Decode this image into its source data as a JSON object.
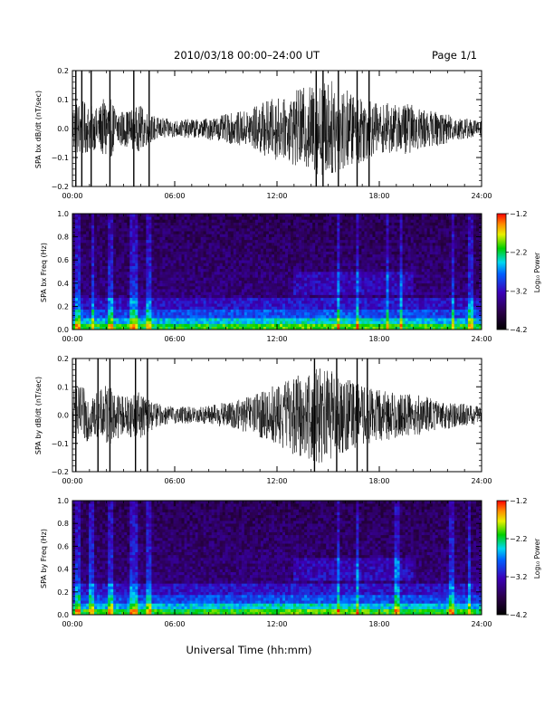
{
  "header": {
    "title": "2010/03/18   00:00–24:00 UT",
    "page": "Page 1/1"
  },
  "footer": {
    "xlabel": "Universal Time (hh:mm)"
  },
  "chart_data": [
    {
      "type": "line",
      "ylabel": "SPA bx dB/dt (nT/sec)",
      "xlim": [
        0,
        24
      ],
      "ylim": [
        -0.2,
        0.2
      ],
      "x_ticks": [
        "00:00",
        "06:00",
        "12:00",
        "18:00",
        "24:00"
      ],
      "y_ticks": [
        "0.2",
        "0.1",
        "0.0",
        "−0.1",
        "−0.2"
      ],
      "envelope": {
        "hour": [
          0,
          0.5,
          1,
          1.5,
          2,
          2.5,
          3,
          3.5,
          4,
          4.5,
          5,
          5.5,
          6,
          6.5,
          7,
          7.5,
          8,
          8.5,
          9,
          9.5,
          10,
          10.5,
          11,
          11.5,
          12,
          12.5,
          13,
          13.5,
          14,
          14.5,
          15,
          15.5,
          16,
          16.5,
          17,
          17.5,
          18,
          18.5,
          19,
          19.5,
          20,
          20.5,
          21,
          21.5,
          22,
          22.5,
          23,
          23.5,
          24
        ],
        "amplitude": [
          0.09,
          0.1,
          0.08,
          0.07,
          0.12,
          0.08,
          0.06,
          0.07,
          0.08,
          0.05,
          0.04,
          0.035,
          0.03,
          0.03,
          0.035,
          0.03,
          0.04,
          0.04,
          0.05,
          0.055,
          0.06,
          0.07,
          0.09,
          0.1,
          0.11,
          0.1,
          0.13,
          0.14,
          0.15,
          0.16,
          0.17,
          0.16,
          0.14,
          0.12,
          0.12,
          0.1,
          0.08,
          0.09,
          0.08,
          0.09,
          0.08,
          0.07,
          0.06,
          0.06,
          0.05,
          0.04,
          0.04,
          0.03,
          0.03
        ]
      },
      "spikes_hour": [
        0.2,
        0.55,
        1.1,
        2.2,
        3.6,
        4.5,
        14.3,
        14.7,
        15.6,
        16.7,
        17.4
      ]
    },
    {
      "type": "heatmap",
      "ylabel": "SPA bx Freq (Hz)",
      "xlim": [
        0,
        24
      ],
      "ylim": [
        0,
        1.0
      ],
      "x_ticks": [
        "00:00",
        "06:00",
        "12:00",
        "18:00",
        "24:00"
      ],
      "y_ticks": [
        "1.0",
        "0.8",
        "0.6",
        "0.4",
        "0.2",
        "0.0"
      ],
      "colorbar": {
        "label": "Log₁₀ Power",
        "range": [
          -4.2,
          -1.2
        ],
        "ticks": [
          "−1.2",
          "−2.2",
          "−3.2",
          "−4.2"
        ]
      },
      "bright_columns_hour": [
        0.3,
        1.2,
        2.2,
        3.5,
        3.7,
        4.5,
        15.6,
        16.7,
        18.5,
        19.3,
        22.3,
        23.4
      ],
      "enhanced_band": {
        "hour": [
          13,
          20
        ],
        "freq_hz": [
          0.3,
          0.5
        ]
      }
    },
    {
      "type": "line",
      "ylabel": "SPA by dB/dt (nT/sec)",
      "xlim": [
        0,
        24
      ],
      "ylim": [
        -0.2,
        0.2
      ],
      "x_ticks": [
        "00:00",
        "06:00",
        "12:00",
        "18:00",
        "24:00"
      ],
      "y_ticks": [
        "0.2",
        "0.1",
        "0.0",
        "−0.1",
        "−0.2"
      ],
      "envelope": {
        "hour": [
          0,
          0.5,
          1,
          1.5,
          2,
          2.5,
          3,
          3.5,
          4,
          4.5,
          5,
          5.5,
          6,
          6.5,
          7,
          7.5,
          8,
          8.5,
          9,
          9.5,
          10,
          10.5,
          11,
          11.5,
          12,
          12.5,
          13,
          13.5,
          14,
          14.5,
          15,
          15.5,
          16,
          16.5,
          17,
          17.5,
          18,
          18.5,
          19,
          19.5,
          20,
          20.5,
          21,
          21.5,
          22,
          22.5,
          23,
          23.5,
          24
        ],
        "amplitude": [
          0.1,
          0.1,
          0.09,
          0.08,
          0.11,
          0.09,
          0.07,
          0.08,
          0.08,
          0.06,
          0.04,
          0.035,
          0.03,
          0.03,
          0.03,
          0.03,
          0.035,
          0.04,
          0.045,
          0.05,
          0.06,
          0.07,
          0.08,
          0.1,
          0.11,
          0.12,
          0.14,
          0.15,
          0.16,
          0.17,
          0.16,
          0.15,
          0.13,
          0.12,
          0.11,
          0.1,
          0.09,
          0.09,
          0.08,
          0.08,
          0.07,
          0.07,
          0.06,
          0.05,
          0.05,
          0.04,
          0.04,
          0.035,
          0.03
        ]
      },
      "spikes_hour": [
        0.2,
        1.5,
        2.2,
        3.7,
        4.4,
        14.2,
        15.5,
        16.7,
        17.3
      ]
    },
    {
      "type": "heatmap",
      "ylabel": "SPA by Freq (Hz)",
      "xlim": [
        0,
        24
      ],
      "ylim": [
        0,
        1.0
      ],
      "x_ticks": [
        "00:00",
        "06:00",
        "12:00",
        "18:00",
        "24:00"
      ],
      "y_ticks": [
        "1.0",
        "0.8",
        "0.6",
        "0.4",
        "0.2",
        "0.0"
      ],
      "colorbar": {
        "label": "Log₁₀ Power",
        "range": [
          -4.2,
          -1.2
        ],
        "ticks": [
          "−1.2",
          "−2.2",
          "−3.2",
          "−4.2"
        ]
      },
      "bright_columns_hour": [
        0.3,
        1.1,
        2.3,
        3.5,
        3.7,
        4.5,
        15.6,
        16.7,
        19.0,
        22.2,
        23.3
      ],
      "enhanced_band": {
        "hour": [
          13,
          20
        ],
        "freq_hz": [
          0.3,
          0.5
        ]
      }
    }
  ]
}
